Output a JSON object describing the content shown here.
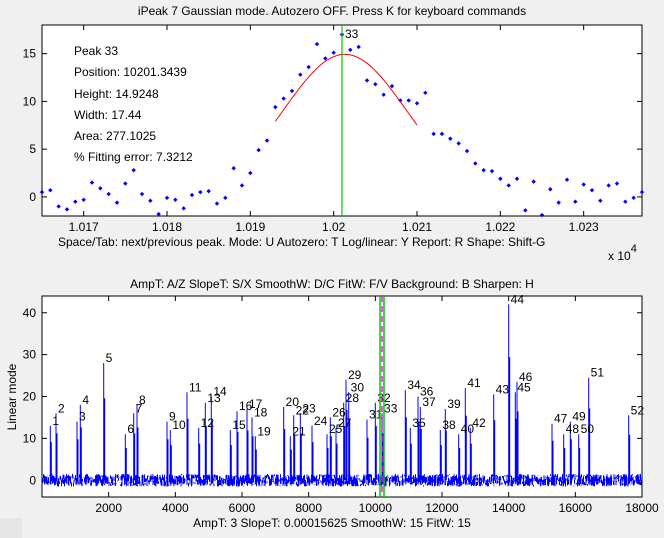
{
  "top_title": "iPeak 7   Gaussian mode.      Autozero OFF.    Press K for keyboard commands",
  "top_info": {
    "peak": "Peak 33",
    "position": "Position: 10201.3439",
    "height": "Height: 14.9248",
    "width": "Width: 17.44",
    "area": "Area: 277.1025",
    "error": "% Fitting error: 7.3212"
  },
  "top_peak_label": "33",
  "top_exponent_base": "x 10",
  "top_exponent_power": "4",
  "top_footer": "Space/Tab: next/previous peak.  Mode: U  Autozero: T   Log/linear: Y   Report: R    Shape: Shift-G",
  "bottom_header": "AmpT: A/Z    SlopeT: S/X    SmoothW: D/C    FitW: F/V    Background: B    Sharpen: H",
  "bottom_ylabel": "Linear mode",
  "bottom_footer": "AmpT: 3    SlopeT: 0.00015625    SmoothW: 15    FitW: 15",
  "colors": {
    "data": "#0000ff",
    "fit": "#ff0000",
    "marker": "#00cc00",
    "cursor_dash": "#ff00ff"
  },
  "chart_data": [
    {
      "type": "scatter",
      "xlim": [
        10165,
        10237
      ],
      "ylim": [
        -2,
        18
      ],
      "x_ticks": [
        10170,
        10180,
        10190,
        10200,
        10210,
        10220,
        10230
      ],
      "x_tick_labels": [
        "1.017",
        "1.018",
        "1.019",
        "1.02",
        "1.021",
        "1.022",
        "1.023"
      ],
      "y_ticks": [
        0,
        5,
        10,
        15
      ],
      "points": [
        [
          10165,
          0.5
        ],
        [
          10166,
          0.7
        ],
        [
          10167,
          -1.0
        ],
        [
          10168,
          -1.3
        ],
        [
          10169,
          -0.5
        ],
        [
          10170,
          -0.3
        ],
        [
          10171,
          1.5
        ],
        [
          10172,
          0.9
        ],
        [
          10173,
          0.3
        ],
        [
          10174,
          -0.6
        ],
        [
          10175,
          1.4
        ],
        [
          10176,
          2.8
        ],
        [
          10177,
          0.3
        ],
        [
          10178,
          -0.4
        ],
        [
          10179,
          -1.8
        ],
        [
          10180,
          -0.1
        ],
        [
          10181,
          -0.3
        ],
        [
          10182,
          -1.2
        ],
        [
          10183,
          0.2
        ],
        [
          10184,
          0.5
        ],
        [
          10185,
          0.6
        ],
        [
          10186,
          -0.7
        ],
        [
          10187,
          -0.1
        ],
        [
          10188,
          3.0
        ],
        [
          10189,
          1.2
        ],
        [
          10190,
          2.5
        ],
        [
          10191,
          4.9
        ],
        [
          10192,
          5.9
        ],
        [
          10193,
          9.4
        ],
        [
          10194,
          10.3
        ],
        [
          10195,
          11.1
        ],
        [
          10196,
          12.8
        ],
        [
          10197,
          13.6
        ],
        [
          10198,
          16.0
        ],
        [
          10199,
          14.5
        ],
        [
          10200,
          15.1
        ],
        [
          10201,
          17.0
        ],
        [
          10202,
          15.4
        ],
        [
          10203,
          15.7
        ],
        [
          10204,
          12.2
        ],
        [
          10205,
          11.8
        ],
        [
          10206,
          10.7
        ],
        [
          10207,
          11.6
        ],
        [
          10208,
          10.1
        ],
        [
          10209,
          10.1
        ],
        [
          10210,
          9.8
        ],
        [
          10211,
          10.9
        ],
        [
          10212,
          6.6
        ],
        [
          10213,
          6.6
        ],
        [
          10214,
          6.1
        ],
        [
          10215,
          5.6
        ],
        [
          10216,
          4.8
        ],
        [
          10217,
          3.5
        ],
        [
          10218,
          2.8
        ],
        [
          10219,
          2.7
        ],
        [
          10220,
          1.9
        ],
        [
          10221,
          1.2
        ],
        [
          10222,
          1.9
        ],
        [
          10223,
          -1.4
        ],
        [
          10224,
          1.6
        ],
        [
          10225,
          -1.9
        ],
        [
          10226,
          0.8
        ],
        [
          10227,
          -0.6
        ],
        [
          10228,
          1.8
        ],
        [
          10229,
          -0.5
        ],
        [
          10230,
          1.3
        ],
        [
          10231,
          0.7
        ],
        [
          10232,
          -0.4
        ],
        [
          10233,
          1.2
        ],
        [
          10234,
          1.4
        ],
        [
          10235,
          -0.5
        ],
        [
          10236,
          -0.1
        ],
        [
          10237,
          0.5
        ]
      ],
      "fit": {
        "center": 10201.3439,
        "height": 14.9248,
        "width": 17.44,
        "x_range": [
          10193,
          10210
        ]
      },
      "marker_x": 10201
    },
    {
      "type": "line",
      "xlim": [
        0,
        18000
      ],
      "ylim": [
        -4,
        44
      ],
      "x_ticks": [
        2000,
        4000,
        6000,
        8000,
        10000,
        12000,
        14000,
        16000,
        18000
      ],
      "y_ticks": [
        0,
        10,
        20,
        30,
        40
      ],
      "noise_amplitude": 1.5,
      "peaks": [
        {
          "label": "1",
          "x": 250,
          "h": 13
        },
        {
          "label": "2",
          "x": 420,
          "h": 16
        },
        {
          "label": "3",
          "x": 1050,
          "h": 14
        },
        {
          "label": "4",
          "x": 1150,
          "h": 18
        },
        {
          "label": "5",
          "x": 1850,
          "h": 28
        },
        {
          "label": "6",
          "x": 2500,
          "h": 11
        },
        {
          "label": "7",
          "x": 2750,
          "h": 16
        },
        {
          "label": "8",
          "x": 2850,
          "h": 18
        },
        {
          "label": "9",
          "x": 3750,
          "h": 14
        },
        {
          "label": "10",
          "x": 3850,
          "h": 12
        },
        {
          "label": "11",
          "x": 4350,
          "h": 21
        },
        {
          "label": "12",
          "x": 4700,
          "h": 12.5
        },
        {
          "label": "13",
          "x": 4900,
          "h": 18.5
        },
        {
          "label": "14",
          "x": 5080,
          "h": 20
        },
        {
          "label": "15",
          "x": 5650,
          "h": 12
        },
        {
          "label": "16",
          "x": 5850,
          "h": 16.5
        },
        {
          "label": "17",
          "x": 6150,
          "h": 17
        },
        {
          "label": "18",
          "x": 6300,
          "h": 15
        },
        {
          "label": "19",
          "x": 6400,
          "h": 10.5
        },
        {
          "label": "20",
          "x": 7250,
          "h": 17.5
        },
        {
          "label": "21",
          "x": 7450,
          "h": 10.5
        },
        {
          "label": "22",
          "x": 7550,
          "h": 15.5
        },
        {
          "label": "23",
          "x": 7750,
          "h": 16
        },
        {
          "label": "24",
          "x": 8100,
          "h": 13
        },
        {
          "label": "25",
          "x": 8550,
          "h": 11
        },
        {
          "label": "26",
          "x": 8650,
          "h": 15
        },
        {
          "label": "27",
          "x": 8820,
          "h": 12.5
        },
        {
          "label": "28",
          "x": 9050,
          "h": 18.5
        },
        {
          "label": "29",
          "x": 9120,
          "h": 24
        },
        {
          "label": "30",
          "x": 9200,
          "h": 21
        },
        {
          "label": "31",
          "x": 9750,
          "h": 14.5
        },
        {
          "label": "32",
          "x": 10000,
          "h": 18.5
        },
        {
          "label": "33",
          "x": 10201,
          "h": 16
        },
        {
          "label": "34",
          "x": 10900,
          "h": 21.5
        },
        {
          "label": "35",
          "x": 11050,
          "h": 12.5
        },
        {
          "label": "36",
          "x": 11280,
          "h": 20
        },
        {
          "label": "37",
          "x": 11350,
          "h": 17.5
        },
        {
          "label": "38",
          "x": 11950,
          "h": 12
        },
        {
          "label": "39",
          "x": 12100,
          "h": 17
        },
        {
          "label": "40",
          "x": 12500,
          "h": 11
        },
        {
          "label": "41",
          "x": 12700,
          "h": 22
        },
        {
          "label": "42",
          "x": 12850,
          "h": 12.5
        },
        {
          "label": "43",
          "x": 13550,
          "h": 20.5
        },
        {
          "label": "44",
          "x": 14000,
          "h": 42
        },
        {
          "label": "45",
          "x": 14200,
          "h": 21
        },
        {
          "label": "46",
          "x": 14250,
          "h": 23.5
        },
        {
          "label": "47",
          "x": 15300,
          "h": 13.5
        },
        {
          "label": "48",
          "x": 15650,
          "h": 11
        },
        {
          "label": "49",
          "x": 15850,
          "h": 14
        },
        {
          "label": "50",
          "x": 16100,
          "h": 11
        },
        {
          "label": "51",
          "x": 16400,
          "h": 24.5
        },
        {
          "label": "52",
          "x": 17600,
          "h": 15.5
        }
      ],
      "cursor_x": 10200
    }
  ]
}
